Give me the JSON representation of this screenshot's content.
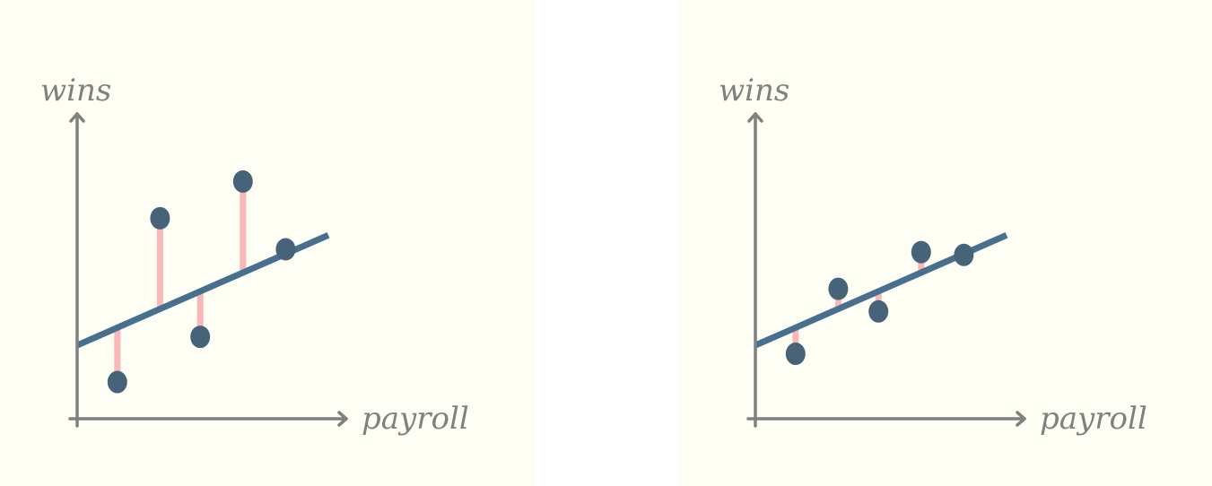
{
  "colors": {
    "panel_background": "#fefef4",
    "axis": "#808080",
    "fit_line": "#47708f",
    "points": "#47637a",
    "residuals": "#f9b8b8"
  },
  "chart_data": [
    {
      "type": "scatter",
      "title": "",
      "xlabel": "payroll",
      "ylabel": "wins",
      "grid": false,
      "legend": "none",
      "xlim": [
        0,
        10
      ],
      "ylim": [
        0,
        10
      ],
      "points": [
        {
          "x": 1.6,
          "y": 1.3
        },
        {
          "x": 3.3,
          "y": 7.1
        },
        {
          "x": 4.9,
          "y": 2.9
        },
        {
          "x": 6.6,
          "y": 8.4
        },
        {
          "x": 8.3,
          "y": 6.0
        }
      ],
      "fit_line": {
        "x": [
          0,
          10
        ],
        "y": [
          2.6,
          6.5
        ]
      }
    },
    {
      "type": "scatter",
      "title": "",
      "xlabel": "payroll",
      "ylabel": "wins",
      "grid": false,
      "legend": "none",
      "xlim": [
        0,
        10
      ],
      "ylim": [
        0,
        10
      ],
      "points": [
        {
          "x": 1.6,
          "y": 2.3
        },
        {
          "x": 3.3,
          "y": 4.6
        },
        {
          "x": 4.9,
          "y": 3.8
        },
        {
          "x": 6.6,
          "y": 5.9
        },
        {
          "x": 8.3,
          "y": 5.8
        }
      ],
      "fit_line": {
        "x": [
          0,
          10
        ],
        "y": [
          2.6,
          6.5
        ]
      }
    }
  ]
}
